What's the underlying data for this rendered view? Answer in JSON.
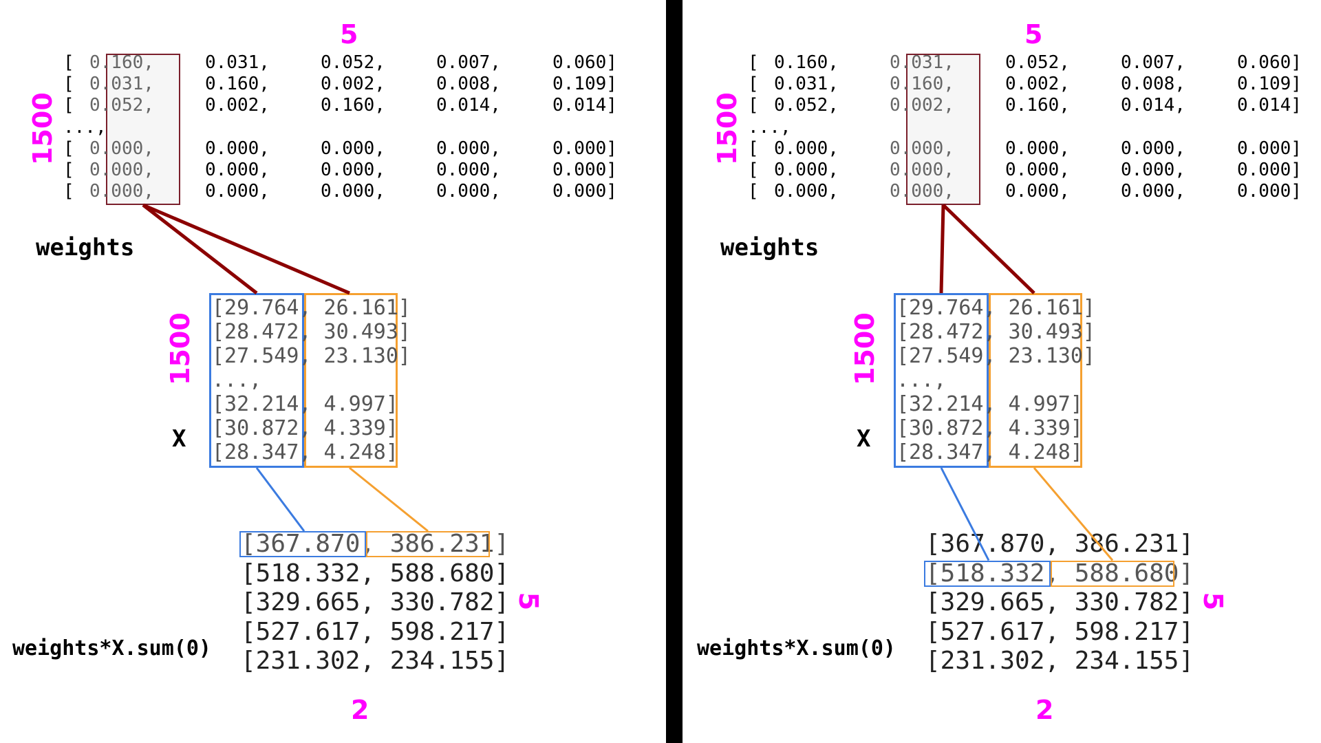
{
  "weights": {
    "label": "weights",
    "rows_top": [
      [
        "0.160,",
        "0.031,",
        "0.052,",
        "0.007,",
        "0.060]"
      ],
      [
        "0.031,",
        "0.160,",
        "0.002,",
        "0.008,",
        "0.109]"
      ],
      [
        "0.052,",
        "0.002,",
        "0.160,",
        "0.014,",
        "0.014]"
      ]
    ],
    "ellipsis": "...,",
    "rows_bottom": [
      [
        "0.000,",
        "0.000,",
        "0.000,",
        "0.000,",
        "0.000]"
      ],
      [
        "0.000,",
        "0.000,",
        "0.000,",
        "0.000,",
        "0.000]"
      ],
      [
        "0.000,",
        "0.000,",
        "0.000,",
        "0.000,",
        "0.000]"
      ]
    ],
    "row_open": "[",
    "dim_cols": "5",
    "dim_rows": "1500"
  },
  "x": {
    "label": "X",
    "dim_rows": "1500",
    "lines": [
      "[29.764, 26.161]",
      "[28.472, 30.493]",
      "[27.549, 23.130]",
      "...,",
      "[32.214,  4.997]",
      "[30.872,  4.339]",
      "[28.347,  4.248]"
    ]
  },
  "result": {
    "label": "weights*X.sum(0)",
    "dim_rows": "5",
    "dim_cols": "2",
    "lines": [
      "[367.870, 386.231]",
      "[518.332, 588.680]",
      "[329.665, 330.782]",
      "[527.617, 598.217]",
      "[231.302, 234.155]"
    ]
  },
  "colors": {
    "weights_link": "#8b0000",
    "x_col0": "#3b7be0",
    "x_col1": "#f5a030",
    "dim_label": "#ff00ff"
  }
}
